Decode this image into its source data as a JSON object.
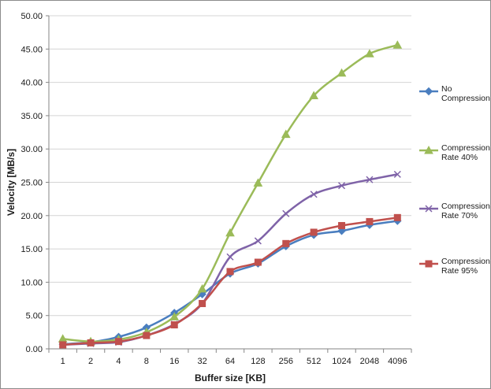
{
  "chart_data": {
    "type": "line",
    "title": "",
    "xlabel": "Buffer size [KB]",
    "ylabel": "Velocity [MB/s]",
    "ylim": [
      0,
      50
    ],
    "y_ticks": [
      "0.00",
      "5.00",
      "10.00",
      "15.00",
      "20.00",
      "25.00",
      "30.00",
      "35.00",
      "40.00",
      "45.00",
      "50.00"
    ],
    "categories": [
      "1",
      "2",
      "4",
      "8",
      "16",
      "32",
      "64",
      "128",
      "256",
      "512",
      "1024",
      "2048",
      "4096"
    ],
    "grid": "horizontal",
    "legend_position": "right",
    "series": [
      {
        "name_lines": [
          "No",
          "Compression"
        ],
        "color": "#4a7ebf",
        "marker": "diamond",
        "values": [
          0.7,
          1.0,
          1.8,
          3.2,
          5.4,
          8.2,
          11.3,
          12.8,
          15.4,
          17.1,
          17.7,
          18.6,
          19.2
        ]
      },
      {
        "name_lines": [
          "Compression",
          "Rate 40%"
        ],
        "color": "#9bbb59",
        "marker": "triangle",
        "values": [
          1.5,
          1.1,
          1.4,
          2.5,
          4.8,
          9.0,
          17.4,
          24.9,
          32.2,
          38.0,
          41.4,
          44.3,
          45.6
        ]
      },
      {
        "name_lines": [
          "Compression",
          "Rate 70%"
        ],
        "color": "#7f63a8",
        "marker": "x",
        "values": [
          0.6,
          0.8,
          1.0,
          2.0,
          3.7,
          6.8,
          13.8,
          16.2,
          20.3,
          23.2,
          24.5,
          25.4,
          26.2
        ]
      },
      {
        "name_lines": [
          "Compression",
          "Rate 95%"
        ],
        "color": "#c0504d",
        "marker": "square",
        "values": [
          0.6,
          0.9,
          1.1,
          2.0,
          3.6,
          6.8,
          11.6,
          13.0,
          15.8,
          17.5,
          18.5,
          19.1,
          19.7
        ]
      }
    ]
  }
}
